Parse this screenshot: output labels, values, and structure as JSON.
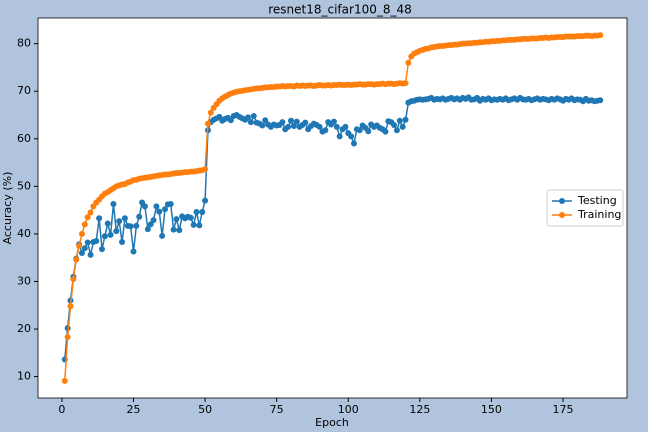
{
  "chart_data": {
    "type": "line",
    "title": "resnet18_cifar100_8_48",
    "x_label": "Epoch",
    "y_label": "Accuracy (%)",
    "x": [
      1,
      2,
      3,
      4,
      5,
      6,
      7,
      8,
      9,
      10,
      11,
      12,
      13,
      14,
      15,
      16,
      17,
      18,
      19,
      20,
      21,
      22,
      23,
      24,
      25,
      26,
      27,
      28,
      29,
      30,
      31,
      32,
      33,
      34,
      35,
      36,
      37,
      38,
      39,
      40,
      41,
      42,
      43,
      44,
      45,
      46,
      47,
      48,
      49,
      50,
      51,
      52,
      53,
      54,
      55,
      56,
      57,
      58,
      59,
      60,
      61,
      62,
      63,
      64,
      65,
      66,
      67,
      68,
      69,
      70,
      71,
      72,
      73,
      74,
      75,
      76,
      77,
      78,
      79,
      80,
      81,
      82,
      83,
      84,
      85,
      86,
      87,
      88,
      89,
      90,
      91,
      92,
      93,
      94,
      95,
      96,
      97,
      98,
      99,
      100,
      101,
      102,
      103,
      104,
      105,
      106,
      107,
      108,
      109,
      110,
      111,
      112,
      113,
      114,
      115,
      116,
      117,
      118,
      119,
      120,
      121,
      122,
      123,
      124,
      125,
      126,
      127,
      128,
      129,
      130,
      131,
      132,
      133,
      134,
      135,
      136,
      137,
      138,
      139,
      140,
      141,
      142,
      143,
      144,
      145,
      146,
      147,
      148,
      149,
      150,
      151,
      152,
      153,
      154,
      155,
      156,
      157,
      158,
      159,
      160,
      161,
      162,
      163,
      164,
      165,
      166,
      167,
      168,
      169,
      170,
      171,
      172,
      173,
      174,
      175,
      176,
      177,
      178,
      179,
      180,
      181,
      182,
      183,
      184,
      185,
      186,
      187,
      188
    ],
    "series": [
      {
        "name": "Testing",
        "color": "#1f77b4",
        "values": [
          13.6,
          20.2,
          26.0,
          31.0,
          34.8,
          37.8,
          36.0,
          37.0,
          38.2,
          35.6,
          38.3,
          38.5,
          43.3,
          36.8,
          39.5,
          42.2,
          39.8,
          46.3,
          40.6,
          42.7,
          38.3,
          43.3,
          41.7,
          41.6,
          36.3,
          41.7,
          43.6,
          46.6,
          45.8,
          41.0,
          42.0,
          42.9,
          45.8,
          44.7,
          39.6,
          45.2,
          46.2,
          46.3,
          40.9,
          43.1,
          40.8,
          43.7,
          43.3,
          43.6,
          43.4,
          41.9,
          44.6,
          41.8,
          44.6,
          47.0,
          61.8,
          63.5,
          64.0,
          64.3,
          64.6,
          63.8,
          64.2,
          64.4,
          63.9,
          64.8,
          65.0,
          64.6,
          64.3,
          64.0,
          64.5,
          63.5,
          64.8,
          63.4,
          63.2,
          62.8,
          63.9,
          63.0,
          62.5,
          63.0,
          62.8,
          62.9,
          63.5,
          62.0,
          62.5,
          63.8,
          62.7,
          63.6,
          62.5,
          62.9,
          63.4,
          62.0,
          62.7,
          63.2,
          62.9,
          62.5,
          61.5,
          61.8,
          63.5,
          63.0,
          63.6,
          62.5,
          60.5,
          62.0,
          62.5,
          61.2,
          60.5,
          59.0,
          62.0,
          61.8,
          62.8,
          62.3,
          61.6,
          63.0,
          62.5,
          62.8,
          62.3,
          62.0,
          61.5,
          63.7,
          63.5,
          62.9,
          61.8,
          63.8,
          62.5,
          64.0,
          67.6,
          67.9,
          68.0,
          68.2,
          68.3,
          68.2,
          68.3,
          68.4,
          68.6,
          68.2,
          68.4,
          68.3,
          68.5,
          68.2,
          68.4,
          68.6,
          68.3,
          68.5,
          68.2,
          68.6,
          68.4,
          68.7,
          68.2,
          68.3,
          68.6,
          68.0,
          68.4,
          68.2,
          68.5,
          68.1,
          68.3,
          68.2,
          68.4,
          68.2,
          68.5,
          68.1,
          68.3,
          68.5,
          68.2,
          68.6,
          68.3,
          68.2,
          68.4,
          68.1,
          68.3,
          68.5,
          68.2,
          68.4,
          68.3,
          68.1,
          68.4,
          68.2,
          68.5,
          68.3,
          68.0,
          68.4,
          68.2,
          68.5,
          68.1,
          68.3,
          68.2,
          67.9,
          68.4,
          68.0,
          68.1,
          67.9,
          68.0,
          68.1
        ]
      },
      {
        "name": "Training",
        "color": "#ff7f0e",
        "values": [
          9.1,
          18.3,
          24.8,
          30.5,
          34.6,
          37.5,
          40.0,
          42.0,
          43.5,
          44.5,
          45.8,
          46.6,
          47.2,
          47.9,
          48.5,
          48.8,
          49.2,
          49.6,
          50.0,
          50.2,
          50.4,
          50.5,
          50.8,
          51.0,
          51.3,
          51.4,
          51.6,
          51.7,
          51.8,
          51.9,
          52.0,
          52.1,
          52.2,
          52.3,
          52.4,
          52.5,
          52.5,
          52.6,
          52.7,
          52.8,
          52.8,
          52.9,
          53.0,
          53.0,
          53.1,
          53.1,
          53.2,
          53.3,
          53.4,
          53.6,
          63.2,
          65.5,
          66.5,
          67.3,
          68.0,
          68.5,
          68.9,
          69.2,
          69.5,
          69.7,
          69.9,
          70.0,
          70.1,
          70.2,
          70.3,
          70.4,
          70.5,
          70.6,
          70.6,
          70.7,
          70.8,
          70.8,
          70.9,
          70.9,
          71.0,
          71.0,
          71.1,
          71.0,
          71.1,
          71.1,
          71.0,
          71.2,
          71.1,
          71.2,
          71.1,
          71.2,
          71.2,
          71.1,
          71.2,
          71.3,
          71.2,
          71.2,
          71.3,
          71.2,
          71.3,
          71.3,
          71.4,
          71.3,
          71.3,
          71.4,
          71.3,
          71.4,
          71.4,
          71.5,
          71.4,
          71.4,
          71.5,
          71.5,
          71.4,
          71.5,
          71.5,
          71.6,
          71.5,
          71.6,
          71.6,
          71.5,
          71.6,
          71.7,
          71.6,
          71.7,
          76.0,
          77.3,
          77.9,
          78.2,
          78.5,
          78.7,
          78.9,
          79.0,
          79.2,
          79.3,
          79.4,
          79.5,
          79.5,
          79.6,
          79.7,
          79.7,
          79.8,
          79.8,
          79.9,
          80.0,
          80.0,
          80.1,
          80.1,
          80.2,
          80.2,
          80.3,
          80.3,
          80.4,
          80.4,
          80.5,
          80.5,
          80.6,
          80.6,
          80.7,
          80.7,
          80.8,
          80.8,
          80.8,
          80.9,
          80.9,
          81.0,
          81.0,
          81.0,
          81.1,
          81.1,
          81.1,
          81.2,
          81.2,
          81.3,
          81.2,
          81.3,
          81.3,
          81.4,
          81.4,
          81.4,
          81.5,
          81.5,
          81.5,
          81.5,
          81.6,
          81.6,
          81.6,
          81.7,
          81.7,
          81.6,
          81.7,
          81.7,
          81.8
        ]
      }
    ],
    "xlim": [
      -8.35,
      197.35
    ],
    "ylim": [
      5.5,
      85.4
    ],
    "xticks": [
      0,
      25,
      50,
      75,
      100,
      125,
      150,
      175
    ],
    "yticks": [
      10,
      20,
      30,
      40,
      50,
      60,
      70,
      80
    ],
    "legend": "right"
  }
}
